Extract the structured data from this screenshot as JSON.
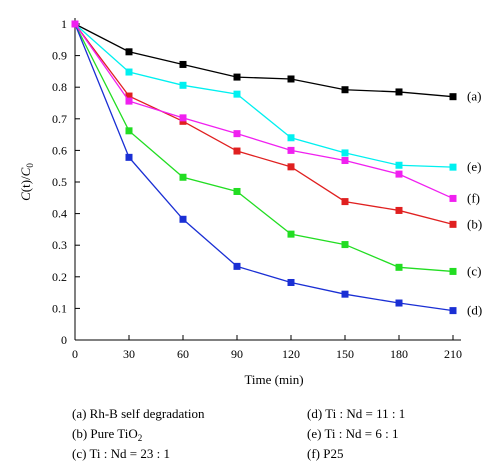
{
  "chart_data": {
    "type": "line",
    "x": [
      0,
      30,
      60,
      90,
      120,
      150,
      180,
      210
    ],
    "xlabel": "Time (min)",
    "ylabel_parts": [
      "C",
      "(t)/",
      "C",
      "0"
    ],
    "xlim": [
      0,
      210
    ],
    "ylim": [
      0,
      1
    ],
    "xticks": [
      0,
      30,
      60,
      90,
      120,
      150,
      180,
      210
    ],
    "yticks": [
      "0",
      "0.1",
      "0.2",
      "0.3",
      "0.4",
      "0.5",
      "0.6",
      "0.7",
      "0.8",
      "0.9",
      "1"
    ],
    "grid": false,
    "legend_position": "bottom",
    "series": [
      {
        "label": "(a)",
        "color": "#000000",
        "values": [
          1.0,
          0.912,
          0.872,
          0.832,
          0.826,
          0.792,
          0.785,
          0.77
        ]
      },
      {
        "label": "(b)",
        "color": "#e02020",
        "values": [
          1.0,
          0.772,
          0.692,
          0.598,
          0.548,
          0.438,
          0.41,
          0.366
        ]
      },
      {
        "label": "(c)",
        "color": "#22dd22",
        "values": [
          1.0,
          0.662,
          0.515,
          0.47,
          0.335,
          0.302,
          0.23,
          0.217
        ]
      },
      {
        "label": "(d)",
        "color": "#1a2fd4",
        "values": [
          1.0,
          0.578,
          0.382,
          0.233,
          0.182,
          0.145,
          0.117,
          0.093
        ]
      },
      {
        "label": "(e)",
        "color": "#00f0f0",
        "values": [
          1.0,
          0.848,
          0.806,
          0.778,
          0.64,
          0.592,
          0.553,
          0.547
        ]
      },
      {
        "label": "(f)",
        "color": "#f020f0",
        "values": [
          1.0,
          0.756,
          0.703,
          0.653,
          0.6,
          0.568,
          0.525,
          0.448
        ]
      }
    ]
  },
  "legend": {
    "rows": [
      [
        {
          "text": "(a) Rh-B self degradation"
        },
        {
          "text": "(d) Ti : Nd = 11 : 1"
        }
      ],
      [
        {
          "text": "(b) Pure TiO",
          "sub": "2"
        },
        {
          "text": "(e) Ti : Nd = 6 : 1"
        }
      ],
      [
        {
          "text": "(c) Ti : Nd = 23 : 1"
        },
        {
          "text": "(f) P25"
        }
      ]
    ]
  }
}
